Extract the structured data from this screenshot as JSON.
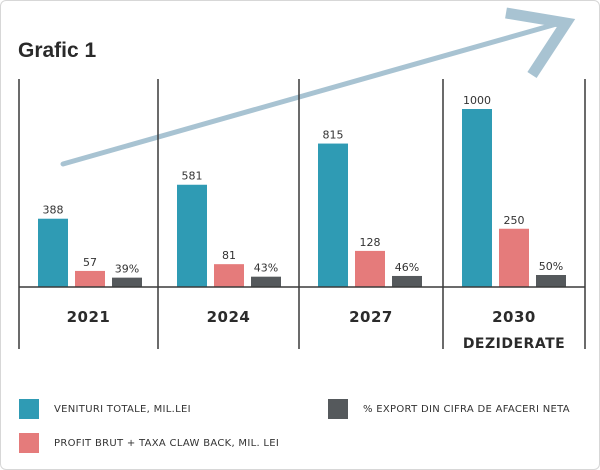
{
  "title": "Grafic 1",
  "colors": {
    "teal": "#2f9bb4",
    "salmon": "#e57b7b",
    "gray": "#55595c",
    "arrow": "#a8c3d2",
    "axis": "#3a3a3a"
  },
  "chart_data": {
    "type": "bar",
    "categories": [
      "2021",
      "2024",
      "2027",
      "2030"
    ],
    "category_sublabels": [
      "",
      "",
      "",
      "DEZIDERATE"
    ],
    "series": [
      {
        "name": "VENITURI TOTALE, MIL.LEI",
        "values": [
          388,
          581,
          815,
          1000
        ],
        "labels": [
          "388",
          "581",
          "815",
          "1000"
        ]
      },
      {
        "name": "PROFIT BRUT + TAXA CLAW BACK, MIL. LEI",
        "values": [
          57,
          81,
          128,
          250
        ],
        "labels": [
          "57",
          "81",
          "128",
          "250"
        ]
      },
      {
        "name": "% EXPORT DIN CIFRA DE AFACERI NETA",
        "values": [
          39,
          43,
          46,
          50
        ],
        "labels": [
          "39%",
          "43%",
          "46%",
          "50%"
        ]
      }
    ],
    "legend_position": "bottom",
    "grid": false,
    "decoration": "upward trend arrow"
  }
}
